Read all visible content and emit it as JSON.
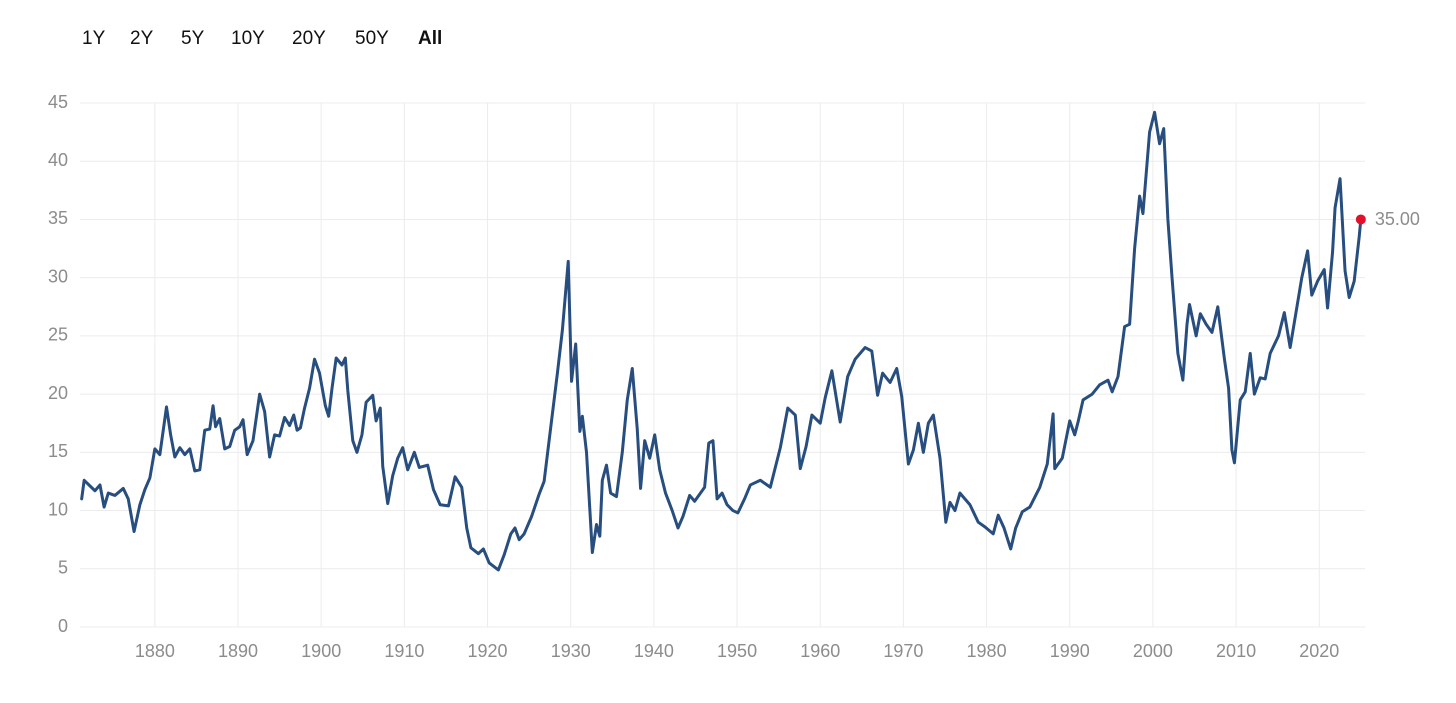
{
  "range_buttons": [
    "1Y",
    "2Y",
    "5Y",
    "10Y",
    "20Y",
    "50Y",
    "All"
  ],
  "selected_range": 6,
  "chart_data": {
    "type": "line",
    "xlim": [
      1871,
      2025.5
    ],
    "xticks": [
      1880,
      1890,
      1900,
      1910,
      1920,
      1930,
      1940,
      1950,
      1960,
      1970,
      1980,
      1990,
      2000,
      2010,
      2020
    ],
    "ylim": [
      0,
      45
    ],
    "yticks": [
      0,
      5,
      10,
      15,
      20,
      25,
      30,
      35,
      40,
      45
    ],
    "grid": true,
    "series": [
      {
        "color": "#274e7f",
        "marker_color": "#e3102b",
        "x": [
          1871.2,
          1871.5,
          1872.8,
          1873.4,
          1873.9,
          1874.4,
          1875.2,
          1876.2,
          1876.8,
          1877.5,
          1878.2,
          1878.8,
          1879.4,
          1880,
          1880.6,
          1881.4,
          1881.9,
          1882.4,
          1883,
          1883.6,
          1884.2,
          1884.8,
          1885.4,
          1886,
          1886.6,
          1887,
          1887.3,
          1887.8,
          1888.4,
          1889,
          1889.6,
          1890.2,
          1890.6,
          1891.1,
          1891.8,
          1892.6,
          1893.2,
          1893.8,
          1894.4,
          1895,
          1895.6,
          1896.2,
          1896.7,
          1897.1,
          1897.5,
          1898,
          1898.6,
          1899.2,
          1899.8,
          1900.5,
          1900.9,
          1901.3,
          1901.8,
          1902.5,
          1902.9,
          1903.2,
          1903.8,
          1904.3,
          1904.9,
          1905.4,
          1906.2,
          1906.6,
          1907.1,
          1907.4,
          1908,
          1908.6,
          1909.2,
          1909.8,
          1910.4,
          1911.2,
          1911.8,
          1912.8,
          1913.5,
          1914.3,
          1915.3,
          1916.1,
          1916.9,
          1917.5,
          1918,
          1918.9,
          1919.5,
          1920.2,
          1921.3,
          1922,
          1922.8,
          1923.3,
          1923.8,
          1924.4,
          1925.3,
          1926.2,
          1926.8,
          1927.4,
          1928.4,
          1929,
          1929.7,
          1930.1,
          1930.6,
          1931.1,
          1931.4,
          1931.9,
          1932.6,
          1933.1,
          1933.5,
          1933.8,
          1934.3,
          1934.8,
          1935.5,
          1936.2,
          1936.8,
          1937.4,
          1938,
          1938.4,
          1938.9,
          1939.5,
          1940.1,
          1940.7,
          1941.4,
          1942.2,
          1942.9,
          1943.5,
          1944.3,
          1944.9,
          1945.5,
          1946.1,
          1946.6,
          1947.1,
          1947.6,
          1948.2,
          1948.8,
          1949.5,
          1950.1,
          1950.9,
          1951.6,
          1952.8,
          1954,
          1955.2,
          1956.1,
          1957,
          1957.6,
          1958.3,
          1959,
          1960,
          1960.6,
          1961.4,
          1962.4,
          1963.3,
          1964.2,
          1965.4,
          1966.2,
          1966.9,
          1967.5,
          1968.4,
          1969.2,
          1969.8,
          1970.6,
          1971.2,
          1971.8,
          1972.4,
          1973,
          1973.6,
          1974.4,
          1975.1,
          1975.6,
          1976.2,
          1976.8,
          1978,
          1979,
          1979.8,
          1980.8,
          1981.4,
          1982.1,
          1982.9,
          1983.5,
          1984.3,
          1985.2,
          1986.4,
          1987.3,
          1988,
          1988.2,
          1989.1,
          1990,
          1990.6,
          1991,
          1991.6,
          1992.7,
          1993.6,
          1994.6,
          1995.1,
          1995.8,
          1996.6,
          1997.2,
          1997.8,
          1998.4,
          1998.8,
          1999.6,
          2000.2,
          2000.8,
          2001.3,
          2001.8,
          2002.3,
          2003,
          2003.6,
          2004.1,
          2004.4,
          2005.2,
          2005.7,
          2006.4,
          2007.1,
          2007.8,
          2008.6,
          2009.1,
          2009.5,
          2009.8,
          2010.5,
          2011.1,
          2011.7,
          2012.2,
          2012.9,
          2013.5,
          2014.1,
          2015.1,
          2015.8,
          2016.5,
          2017.2,
          2017.9,
          2018.6,
          2019.1,
          2019.8,
          2020.6,
          2021,
          2021.6,
          2021.9,
          2022.5,
          2023.1,
          2023.6,
          2024.2,
          2024.8,
          2025
        ],
        "values": [
          11.0,
          12.6,
          11.7,
          12.2,
          10.3,
          11.5,
          11.3,
          11.9,
          11.0,
          8.2,
          10.5,
          11.8,
          12.8,
          15.3,
          14.8,
          18.9,
          16.5,
          14.6,
          15.4,
          14.8,
          15.3,
          13.4,
          13.5,
          16.9,
          17.0,
          19.0,
          17.2,
          17.9,
          15.3,
          15.5,
          16.9,
          17.2,
          17.8,
          14.8,
          16.0,
          20.0,
          18.5,
          14.6,
          16.5,
          16.4,
          18.0,
          17.3,
          18.2,
          16.9,
          17.1,
          18.8,
          20.5,
          23.0,
          21.8,
          19.0,
          18.1,
          20.5,
          23.1,
          22.5,
          23.1,
          20.3,
          16.0,
          15.0,
          16.5,
          19.3,
          19.9,
          17.7,
          18.8,
          13.8,
          10.6,
          13.0,
          14.5,
          15.4,
          13.5,
          15.0,
          13.7,
          13.9,
          11.8,
          10.5,
          10.4,
          12.9,
          12.0,
          8.5,
          6.8,
          6.3,
          6.7,
          5.5,
          4.9,
          6.2,
          8.0,
          8.5,
          7.5,
          8.0,
          9.5,
          11.4,
          12.5,
          16.0,
          21.8,
          25.5,
          31.4,
          21.1,
          24.3,
          16.8,
          18.1,
          15.0,
          6.4,
          8.8,
          7.8,
          12.6,
          13.9,
          11.5,
          11.2,
          15.0,
          19.5,
          22.2,
          17.0,
          11.9,
          16.0,
          14.5,
          16.5,
          13.5,
          11.5,
          10.0,
          8.5,
          9.5,
          11.3,
          10.8,
          11.4,
          12.0,
          15.8,
          16.0,
          11.0,
          11.5,
          10.5,
          10.0,
          9.8,
          11.0,
          12.2,
          12.6,
          12.0,
          15.4,
          18.8,
          18.2,
          13.6,
          15.5,
          18.2,
          17.5,
          19.7,
          22.0,
          17.6,
          21.5,
          23.0,
          24.0,
          23.7,
          19.9,
          21.8,
          21.0,
          22.2,
          19.8,
          14.0,
          15.2,
          17.5,
          15.0,
          17.5,
          18.2,
          14.5,
          9.0,
          10.7,
          10.0,
          11.5,
          10.5,
          9.0,
          8.6,
          8.0,
          9.6,
          8.5,
          6.7,
          8.5,
          9.9,
          10.3,
          12.0,
          14.0,
          18.3,
          13.6,
          14.5,
          17.7,
          16.5,
          17.6,
          19.5,
          20.0,
          20.8,
          21.2,
          20.2,
          21.5,
          25.8,
          26.0,
          32.5,
          37.0,
          35.5,
          42.5,
          44.2,
          41.5,
          42.8,
          35.0,
          30.0,
          23.5,
          21.2,
          26.0,
          27.7,
          25.0,
          26.9,
          26.0,
          25.3,
          27.5,
          23.0,
          20.5,
          15.2,
          14.1,
          19.5,
          20.2,
          23.5,
          20.0,
          21.4,
          21.3,
          23.5,
          25.0,
          27.0,
          24.0,
          27.0,
          30.0,
          32.3,
          28.5,
          29.7,
          30.7,
          27.4,
          32.2,
          36.0,
          38.5,
          30.6,
          28.3,
          29.7,
          33.5,
          35.0
        ],
        "value_labels": [
          null,
          null,
          null,
          null,
          null,
          null,
          null,
          null,
          null,
          null,
          null,
          null,
          null,
          null,
          null,
          null,
          null,
          null,
          null,
          null,
          null,
          null,
          null,
          null,
          null,
          null,
          null,
          null,
          null,
          null,
          null,
          null,
          null,
          null,
          null,
          null,
          null,
          null,
          null,
          null,
          null,
          null,
          null,
          null,
          null,
          null,
          null,
          null,
          null,
          null,
          null,
          null,
          null,
          null,
          null,
          null,
          null,
          null,
          null,
          null,
          null,
          null,
          null,
          null,
          null,
          null,
          null,
          null,
          null,
          null,
          null,
          null,
          null,
          null,
          null,
          null,
          null,
          null,
          null,
          null,
          null,
          null,
          null,
          null,
          null,
          null,
          null,
          null,
          null,
          null,
          null,
          null,
          null,
          null,
          null,
          null,
          null,
          null,
          null,
          null,
          null,
          null,
          null,
          null,
          null,
          null,
          null,
          null,
          null,
          null,
          null,
          null,
          null,
          null,
          null,
          null,
          null,
          null,
          null,
          null,
          null,
          null,
          null,
          null,
          null,
          null,
          null,
          null,
          null,
          null,
          null,
          null,
          null,
          null,
          null,
          null,
          null,
          null,
          null,
          null,
          null,
          null,
          null,
          null,
          null,
          null,
          null,
          null,
          null,
          null,
          null,
          null,
          null,
          null,
          null,
          null,
          null,
          null,
          null,
          null,
          null,
          null,
          null,
          null,
          null,
          null,
          null,
          null,
          null,
          null,
          null,
          null,
          null,
          null,
          null,
          null,
          null,
          null,
          null,
          null,
          null,
          null,
          null,
          null,
          null,
          null,
          null,
          null,
          null,
          null,
          null,
          null,
          null,
          null,
          null,
          null,
          null,
          null,
          null,
          null,
          null,
          null,
          null,
          null,
          null,
          null,
          null,
          null,
          null,
          null,
          null,
          null,
          null,
          null,
          null,
          null,
          null,
          null,
          null,
          null,
          null,
          null,
          null,
          null,
          null,
          null,
          null,
          null,
          null,
          null,
          null,
          null,
          null,
          null,
          null,
          null,
          null,
          "35.00"
        ]
      }
    ]
  }
}
